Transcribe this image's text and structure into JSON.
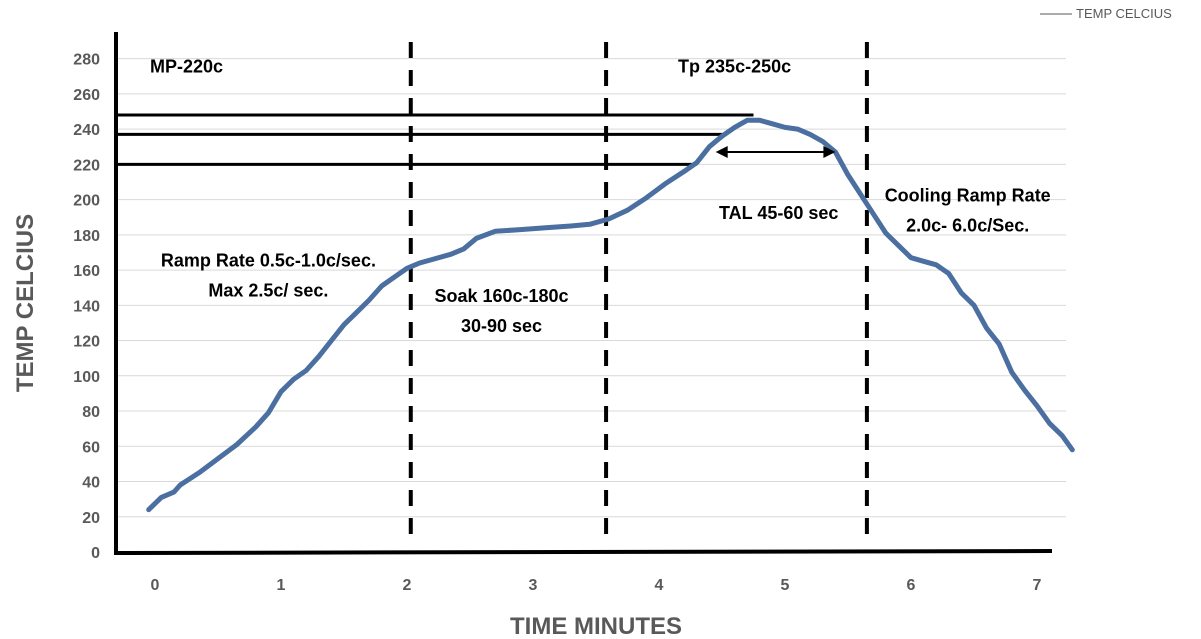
{
  "chart_data": {
    "type": "line",
    "xlabel": "TIME MINUTES",
    "ylabel": "TEMP CELCIUS",
    "xlim": [
      -0.3,
      7.3
    ],
    "ylim": [
      0,
      280
    ],
    "x_ticks": [
      0,
      1,
      2,
      3,
      4,
      5,
      6,
      7
    ],
    "y_ticks": [
      0,
      20,
      40,
      60,
      80,
      100,
      120,
      140,
      160,
      180,
      200,
      220,
      240,
      260,
      280
    ],
    "grid": "horizontal",
    "legend_position": "top-right",
    "series": [
      {
        "name": "TEMP CELCIUS",
        "color": "#4A6FA0",
        "points": [
          [
            -0.05,
            24
          ],
          [
            0.05,
            31
          ],
          [
            0.15,
            34
          ],
          [
            0.2,
            38
          ],
          [
            0.35,
            45
          ],
          [
            0.5,
            53
          ],
          [
            0.65,
            61
          ],
          [
            0.8,
            71
          ],
          [
            0.9,
            79
          ],
          [
            1.0,
            91
          ],
          [
            1.1,
            98
          ],
          [
            1.2,
            103
          ],
          [
            1.3,
            111
          ],
          [
            1.4,
            120
          ],
          [
            1.5,
            129
          ],
          [
            1.6,
            136
          ],
          [
            1.7,
            143
          ],
          [
            1.8,
            151
          ],
          [
            1.9,
            156
          ],
          [
            2.0,
            161
          ],
          [
            2.1,
            164
          ],
          [
            2.2,
            166
          ],
          [
            2.35,
            169
          ],
          [
            2.45,
            172
          ],
          [
            2.55,
            178
          ],
          [
            2.7,
            182
          ],
          [
            2.9,
            183
          ],
          [
            3.1,
            184
          ],
          [
            3.3,
            185
          ],
          [
            3.45,
            186
          ],
          [
            3.6,
            189
          ],
          [
            3.75,
            194
          ],
          [
            3.9,
            201
          ],
          [
            4.05,
            209
          ],
          [
            4.2,
            216
          ],
          [
            4.3,
            221
          ],
          [
            4.4,
            230
          ],
          [
            4.5,
            236
          ],
          [
            4.6,
            241
          ],
          [
            4.7,
            245
          ],
          [
            4.8,
            245
          ],
          [
            4.9,
            243
          ],
          [
            5.0,
            241
          ],
          [
            5.1,
            240
          ],
          [
            5.2,
            237
          ],
          [
            5.3,
            233
          ],
          [
            5.4,
            227
          ],
          [
            5.5,
            214
          ],
          [
            5.6,
            203
          ],
          [
            5.7,
            192
          ],
          [
            5.8,
            181
          ],
          [
            5.9,
            174
          ],
          [
            6.0,
            167
          ],
          [
            6.1,
            165
          ],
          [
            6.2,
            163
          ],
          [
            6.3,
            158
          ],
          [
            6.4,
            147
          ],
          [
            6.5,
            140
          ],
          [
            6.6,
            127
          ],
          [
            6.7,
            118
          ],
          [
            6.8,
            102
          ],
          [
            6.9,
            92
          ],
          [
            7.0,
            83
          ],
          [
            7.1,
            73
          ],
          [
            7.2,
            66
          ],
          [
            7.28,
            58
          ]
        ]
      }
    ],
    "vertical_markers": [
      {
        "x": 2.03,
        "style": "dashed"
      },
      {
        "x": 3.58,
        "style": "dashed"
      },
      {
        "x": 5.65,
        "style": "dashed"
      }
    ],
    "reference_lines": [
      {
        "y": 248,
        "x_end": 4.75
      },
      {
        "y": 237,
        "x_end": 4.5
      },
      {
        "y": 220,
        "x_end": 4.3
      }
    ],
    "tal_arrow": {
      "x_start": 4.45,
      "x_end": 5.4,
      "y": 227
    },
    "annotations": [
      {
        "lines": [
          "MP-220c"
        ],
        "x": 0.25,
        "y": 272
      },
      {
        "lines": [
          "Tp 235c-250c"
        ],
        "x": 4.6,
        "y": 272
      },
      {
        "lines": [
          "Ramp Rate 0.5c-1.0c/sec.",
          "Max  2.5c/ sec."
        ],
        "x": 0.9,
        "y": 162
      },
      {
        "lines": [
          "Soak 160c-180c",
          "30-90 sec"
        ],
        "x": 2.75,
        "y": 142
      },
      {
        "lines": [
          "TAL 45-60 sec"
        ],
        "x": 4.95,
        "y": 189
      },
      {
        "lines": [
          "Cooling Ramp Rate",
          "2.0c- 6.0c/Sec."
        ],
        "x": 6.45,
        "y": 199
      }
    ]
  }
}
